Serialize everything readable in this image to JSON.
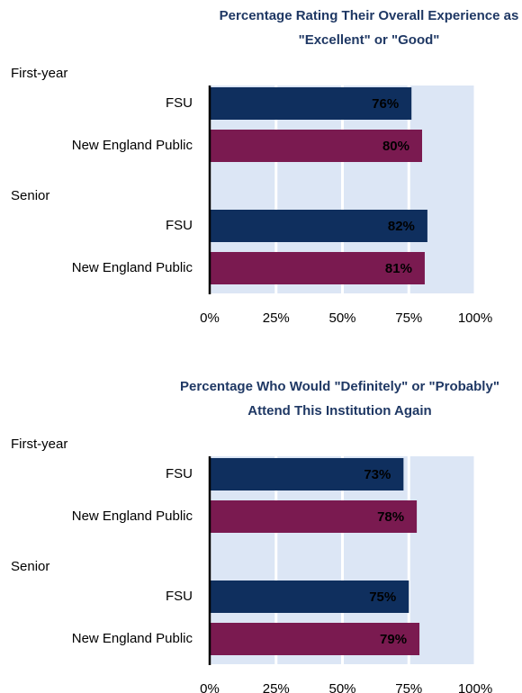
{
  "chart_data": [
    {
      "type": "bar",
      "orientation": "horizontal",
      "title": "Percentage Rating Their Overall Experience as \"Excellent\" or \"Good\"",
      "groups": [
        {
          "name": "First-year",
          "categories": [
            "FSU",
            "New England Public"
          ],
          "values": [
            76,
            80
          ],
          "value_labels": [
            "76%",
            "80%"
          ]
        },
        {
          "name": "Senior",
          "categories": [
            "FSU",
            "New England Public"
          ],
          "values": [
            82,
            81
          ],
          "value_labels": [
            "82%",
            "81%"
          ]
        }
      ],
      "colors": [
        "#0f2f5e",
        "#7a1a50"
      ],
      "xlim": [
        0,
        100
      ],
      "xticks": [
        {
          "value": 0,
          "label": "0%"
        },
        {
          "value": 25,
          "label": "25%"
        },
        {
          "value": 50,
          "label": "50%"
        },
        {
          "value": 75,
          "label": "75%"
        },
        {
          "value": 100,
          "label": "100%"
        }
      ],
      "grid": true
    },
    {
      "type": "bar",
      "orientation": "horizontal",
      "title": "Percentage Who Would \"Definitely\" or \"Probably\" Attend This Institution Again",
      "groups": [
        {
          "name": "First-year",
          "categories": [
            "FSU",
            "New England Public"
          ],
          "values": [
            73,
            78
          ],
          "value_labels": [
            "73%",
            "78%"
          ]
        },
        {
          "name": "Senior",
          "categories": [
            "FSU",
            "New England Public"
          ],
          "values": [
            75,
            79
          ],
          "value_labels": [
            "75%",
            "79%"
          ]
        }
      ],
      "colors": [
        "#0f2f5e",
        "#7a1a50"
      ],
      "xlim": [
        0,
        100
      ],
      "xticks": [
        {
          "value": 0,
          "label": "0%"
        },
        {
          "value": 25,
          "label": "25%"
        },
        {
          "value": 50,
          "label": "50%"
        },
        {
          "value": 75,
          "label": "75%"
        },
        {
          "value": 100,
          "label": "100%"
        }
      ],
      "grid": true
    }
  ]
}
